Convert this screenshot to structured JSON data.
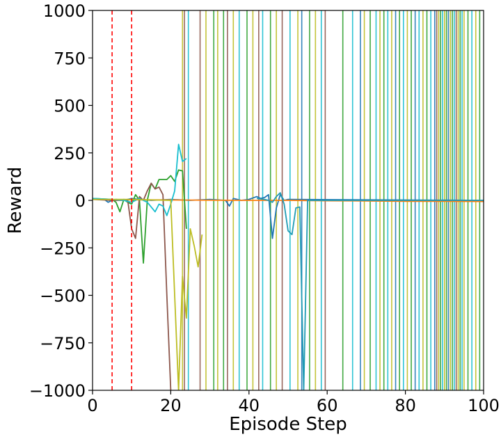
{
  "chart_data": {
    "type": "line",
    "title": "",
    "xlabel": "Episode Step",
    "ylabel": "Reward",
    "xlim": [
      0,
      100
    ],
    "ylim": [
      -1000,
      1000
    ],
    "xticks": [
      0,
      20,
      40,
      60,
      80,
      100
    ],
    "yticks": [
      -1000,
      -750,
      -500,
      -250,
      0,
      250,
      500,
      750,
      1000
    ],
    "xtick_labels": [
      "0",
      "20",
      "40",
      "60",
      "80",
      "100"
    ],
    "ytick_labels": [
      "−1000",
      "−750",
      "−500",
      "−250",
      "0",
      "250",
      "500",
      "750",
      "1000"
    ],
    "grid": false,
    "legend": "none",
    "reference_lines": [
      {
        "x": 5,
        "style": "dashed",
        "color": "#ff0000"
      },
      {
        "x": 10,
        "style": "dashed",
        "color": "#ff0000"
      }
    ],
    "series": [
      {
        "color": "#1f77b4",
        "x": [
          0,
          3,
          4,
          5,
          6,
          8,
          10,
          12,
          15,
          20,
          25,
          30,
          34,
          35,
          36,
          38,
          40,
          42,
          43,
          44,
          45,
          46,
          47,
          48,
          49,
          50,
          100
        ],
        "y": [
          10,
          5,
          -10,
          0,
          5,
          0,
          10,
          5,
          0,
          5,
          0,
          5,
          0,
          -30,
          10,
          0,
          5,
          20,
          10,
          15,
          30,
          -200,
          -40,
          30,
          0,
          5,
          0
        ]
      },
      {
        "color": "#ff7f0e",
        "x": [
          0,
          10,
          20,
          30,
          40,
          50,
          60,
          70,
          80,
          90,
          100
        ],
        "y": [
          5,
          3,
          2,
          1,
          0,
          0,
          -2,
          -3,
          -5,
          -5,
          -6
        ]
      },
      {
        "color": "#2ca02c",
        "x": [
          0,
          5,
          6,
          7,
          8,
          9,
          10,
          11,
          12,
          13,
          14,
          15,
          16,
          17,
          18,
          19,
          20,
          21,
          22,
          23,
          24
        ],
        "y": [
          10,
          5,
          -10,
          -60,
          5,
          -10,
          -20,
          30,
          0,
          -330,
          0,
          90,
          60,
          110,
          110,
          110,
          130,
          100,
          160,
          155,
          -150
        ]
      },
      {
        "color": "#8c564b",
        "x": [
          0,
          5,
          9,
          10,
          11,
          12,
          13,
          14,
          15,
          16,
          17,
          18,
          19,
          20
        ],
        "y": [
          5,
          0,
          0,
          -150,
          -200,
          20,
          0,
          50,
          90,
          60,
          70,
          30,
          -500,
          -1000
        ]
      },
      {
        "color": "#17becf",
        "x": [
          0,
          5,
          8,
          10,
          12,
          14,
          16,
          17,
          18,
          19,
          20,
          21,
          22,
          23,
          24
        ],
        "y": [
          10,
          5,
          0,
          -10,
          10,
          -10,
          -60,
          -20,
          -30,
          -80,
          -20,
          50,
          295,
          205,
          220
        ]
      },
      {
        "color": "#bcbd22",
        "x": [
          0,
          10,
          20,
          22,
          23,
          24,
          25,
          26,
          27,
          28
        ],
        "y": [
          5,
          5,
          0,
          -1000,
          -400,
          -620,
          -150,
          -240,
          -350,
          -180
        ]
      },
      {
        "color": "#1f9bb4",
        "x": [
          42,
          44,
          45,
          46,
          47,
          48,
          49,
          50,
          51,
          52,
          53,
          54,
          55,
          100
        ],
        "y": [
          10,
          5,
          0,
          -10,
          20,
          40,
          -20,
          -160,
          -180,
          -40,
          -35,
          -1000,
          0,
          0
        ]
      }
    ],
    "vertical_lines": [
      {
        "x": 23,
        "color": "#bcbd22"
      },
      {
        "x": 23.5,
        "color": "#8c564b"
      },
      {
        "x": 24.5,
        "color": "#17becf"
      },
      {
        "x": 27.5,
        "color": "#8c564b"
      },
      {
        "x": 29,
        "color": "#bcbd22"
      },
      {
        "x": 31,
        "color": "#2ca02c"
      },
      {
        "x": 32,
        "color": "#bcbd22"
      },
      {
        "x": 33.5,
        "color": "#2ca02c"
      },
      {
        "x": 34.5,
        "color": "#8c564b"
      },
      {
        "x": 36,
        "color": "#bcbd22"
      },
      {
        "x": 37.5,
        "color": "#17becf"
      },
      {
        "x": 39.5,
        "color": "#2ca02c"
      },
      {
        "x": 41,
        "color": "#bcbd22"
      },
      {
        "x": 42.5,
        "color": "#8c564b"
      },
      {
        "x": 43.5,
        "color": "#17becf"
      },
      {
        "x": 45.5,
        "color": "#2ca02c"
      },
      {
        "x": 47,
        "color": "#bcbd22"
      },
      {
        "x": 48.5,
        "color": "#8c564b"
      },
      {
        "x": 50.5,
        "color": "#17becf"
      },
      {
        "x": 52.5,
        "color": "#bcbd22"
      },
      {
        "x": 53.5,
        "color": "#1f77b4"
      },
      {
        "x": 55.5,
        "color": "#2ca02c"
      },
      {
        "x": 57,
        "color": "#bcbd22"
      },
      {
        "x": 58.5,
        "color": "#17becf"
      },
      {
        "x": 59.5,
        "color": "#8c564b"
      },
      {
        "x": 64,
        "color": "#2ca02c"
      },
      {
        "x": 66.5,
        "color": "#17becf"
      },
      {
        "x": 68.5,
        "color": "#1f77b4"
      },
      {
        "x": 69.5,
        "color": "#bcbd22"
      },
      {
        "x": 71,
        "color": "#2ca02c"
      },
      {
        "x": 72.5,
        "color": "#17becf"
      },
      {
        "x": 73.5,
        "color": "#bcbd22"
      },
      {
        "x": 74.5,
        "color": "#2ca02c"
      },
      {
        "x": 75.5,
        "color": "#17becf"
      },
      {
        "x": 76.5,
        "color": "#bcbd22"
      },
      {
        "x": 77.5,
        "color": "#1f77b4"
      },
      {
        "x": 78.5,
        "color": "#2ca02c"
      },
      {
        "x": 79.5,
        "color": "#17becf"
      },
      {
        "x": 80.5,
        "color": "#bcbd22"
      },
      {
        "x": 81.5,
        "color": "#2ca02c"
      },
      {
        "x": 82.5,
        "color": "#1f77b4"
      },
      {
        "x": 83.5,
        "color": "#17becf"
      },
      {
        "x": 84.5,
        "color": "#bcbd22"
      },
      {
        "x": 85.5,
        "color": "#2ca02c"
      },
      {
        "x": 86.5,
        "color": "#17becf"
      },
      {
        "x": 87.5,
        "color": "#1f77b4"
      },
      {
        "x": 88,
        "color": "#8c564b"
      },
      {
        "x": 88.5,
        "color": "#bcbd22"
      },
      {
        "x": 89,
        "color": "#2ca02c"
      },
      {
        "x": 89.5,
        "color": "#17becf"
      },
      {
        "x": 90,
        "color": "#bcbd22"
      },
      {
        "x": 90.5,
        "color": "#2ca02c"
      },
      {
        "x": 91,
        "color": "#1f77b4"
      },
      {
        "x": 91.5,
        "color": "#bcbd22"
      },
      {
        "x": 92,
        "color": "#2ca02c"
      },
      {
        "x": 92.5,
        "color": "#17becf"
      },
      {
        "x": 93,
        "color": "#8c564b"
      },
      {
        "x": 93.5,
        "color": "#bcbd22"
      },
      {
        "x": 94,
        "color": "#2ca02c"
      },
      {
        "x": 94.5,
        "color": "#17becf"
      },
      {
        "x": 95,
        "color": "#bcbd22"
      },
      {
        "x": 96,
        "color": "#2ca02c"
      },
      {
        "x": 97,
        "color": "#17becf"
      },
      {
        "x": 98,
        "color": "#bcbd22"
      },
      {
        "x": 99,
        "color": "#2ca02c"
      }
    ]
  }
}
